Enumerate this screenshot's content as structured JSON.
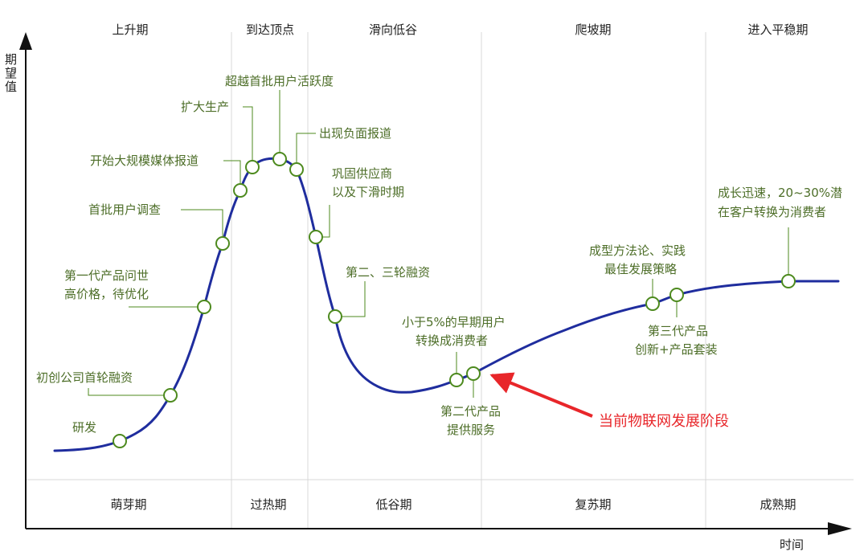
{
  "axes": {
    "y_label": [
      "期",
      "望",
      "值"
    ],
    "x_label": "时间"
  },
  "top_phases": [
    "上升期",
    "到达顶点",
    "滑向低谷",
    "爬坡期",
    "进入平稳期"
  ],
  "bottom_phases": [
    "萌芽期",
    "过热期",
    "低谷期",
    "复苏期",
    "成熟期"
  ],
  "labels": {
    "research": "研发",
    "first_funding": "初创公司首轮融资",
    "first_gen_1": "第一代产品问世",
    "first_gen_2": "高价格，待优化",
    "first_users": "首批用户调查",
    "mass_media": "开始大规模媒体报道",
    "expand_production": "扩大生产",
    "exceed_activity": "超越首批用户活跃度",
    "negative_reports": "出现负面报道",
    "consolidate_1": "巩固供应商",
    "consolidate_2": "以及下滑时期",
    "second_third_funding": "第二、三轮融资",
    "early_users_1": "小于5%的早期用户",
    "early_users_2": "转换成消费者",
    "second_gen_1": "第二代产品",
    "second_gen_2": "提供服务",
    "methodology_1": "成型方法论、实践",
    "methodology_2": "最佳发展策略",
    "third_gen_1": "第三代产品",
    "third_gen_2": "创新+产品套装",
    "growth_1": "成长迅速，20~30%潜",
    "growth_2": "在客户转换为消费者"
  },
  "callout": "当前物联网发展阶段",
  "colors": {
    "curve": "#1f2d9e",
    "marker": "#4d8a1e",
    "label": "#4d6e28",
    "callout": "#e8262a",
    "divider": "#d8d8d8"
  }
}
